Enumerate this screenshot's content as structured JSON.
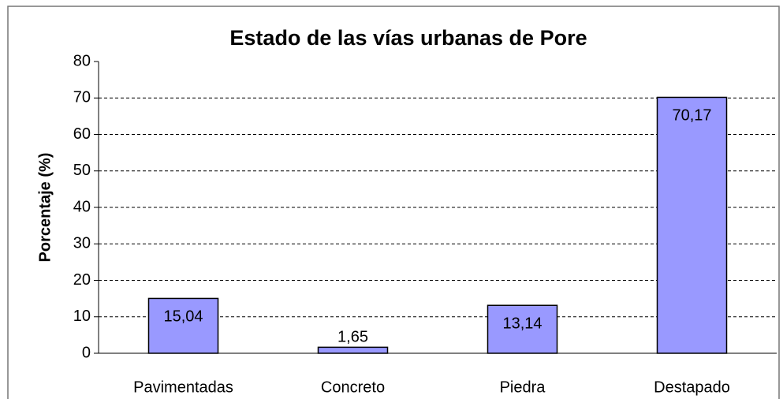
{
  "chart_data": {
    "type": "bar",
    "title": "Estado de las vías urbanas de Pore",
    "y_label": "Porcentaje (%)",
    "categories": [
      "Pavimentadas",
      "Concreto",
      "Piedra",
      "Destapado"
    ],
    "values": [
      15.04,
      1.65,
      13.14,
      70.17
    ],
    "value_labels": [
      "15,04",
      "1,65",
      "13,14",
      "70,17"
    ],
    "color": "#9999ff",
    "ylim": [
      0,
      80
    ],
    "yticks": [
      0,
      10,
      20,
      30,
      40,
      50,
      60,
      70,
      80
    ],
    "grid": true
  }
}
